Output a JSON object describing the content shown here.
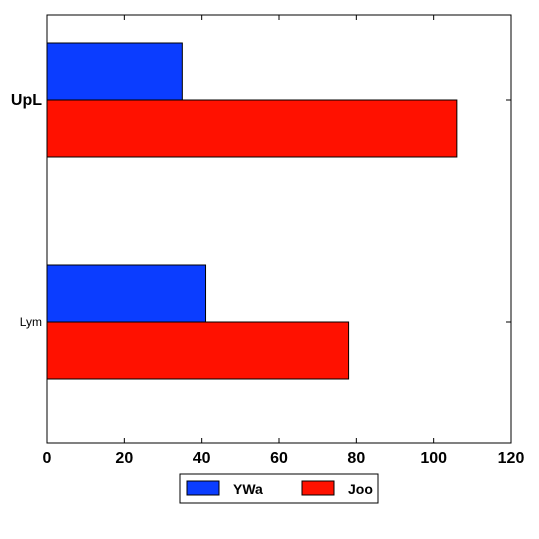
{
  "chart_data": {
    "type": "bar",
    "orientation": "horizontal",
    "categories": [
      "Lym",
      "UpL"
    ],
    "category_label_style": {
      "Lym": "normal",
      "UpL": "bold"
    },
    "series": [
      {
        "name": "YWa",
        "color": "#0b3dff",
        "values": [
          41,
          35
        ]
      },
      {
        "name": "Joo",
        "color": "#ff1100",
        "values": [
          78,
          106
        ]
      }
    ],
    "xlim": [
      0,
      120
    ],
    "xticks": [
      0,
      20,
      40,
      60,
      80,
      100,
      120
    ],
    "grid": false,
    "legend_position": "bottom-center",
    "title": "",
    "xlabel": "",
    "ylabel": ""
  }
}
